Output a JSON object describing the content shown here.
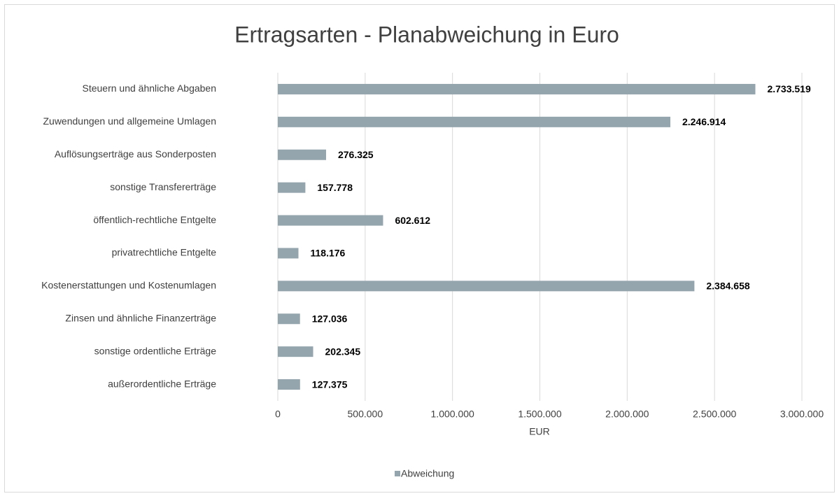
{
  "chart_data": {
    "type": "bar",
    "title": "Ertragsarten - Planabweichung in Euro",
    "x_label": "EUR",
    "categories": [
      "Steuern und ähnliche Abgaben",
      "Zuwendungen und allgemeine Umlagen",
      "Auflösungserträge aus Sonderposten",
      "sonstige Transfererträge",
      "öffentlich-rechtliche Entgelte",
      "privatrechtliche Entgelte",
      "Kostenerstattungen und Kostenumlagen",
      "Zinsen und ähnliche Finanzerträge",
      "sonstige ordentliche Erträge",
      "außerordentliche Erträge"
    ],
    "series": [
      {
        "name": "Abweichung",
        "color": "#95a5ad",
        "values": [
          2733519,
          2246914,
          276325,
          157778,
          602612,
          118176,
          2384658,
          127036,
          202345,
          127375
        ],
        "value_labels": [
          "2.733.519",
          "2.246.914",
          "276.325",
          "157.778",
          "602.612",
          "118.176",
          "2.384.658",
          "127.036",
          "202.345",
          "127.375"
        ]
      }
    ],
    "xlim": [
      0,
      3000000
    ],
    "xticks": [
      0,
      {
        "value": 500000,
        "label": "500.000"
      },
      {
        "value": 1000000,
        "label": "1.000.000"
      },
      {
        "value": 1500000,
        "label": "1.500.000"
      },
      {
        "value": 2000000,
        "label": "2.000.000"
      },
      {
        "value": 2500000,
        "label": "2.500.000"
      },
      {
        "value": 3000000,
        "label": "3.000.000"
      }
    ],
    "grid": true,
    "legend": "bottom"
  }
}
